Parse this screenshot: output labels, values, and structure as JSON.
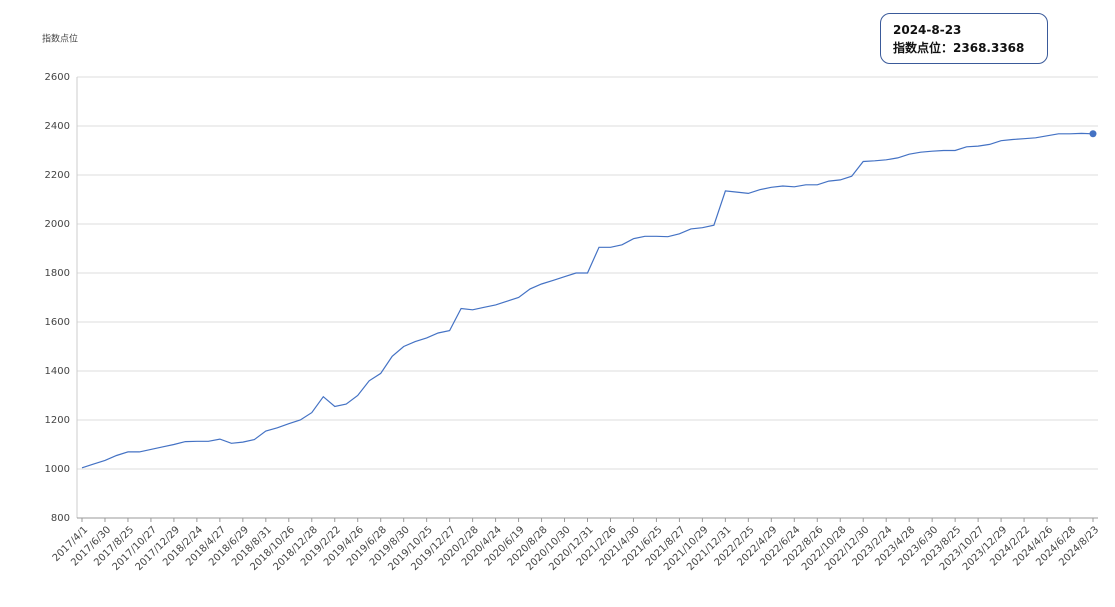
{
  "chart_data": {
    "type": "line",
    "y_label": "指数点位",
    "categories": [
      "2017/4/1",
      null,
      "2017/6/30",
      null,
      "2017/8/25",
      null,
      "2017/10/27",
      null,
      "2017/12/29",
      null,
      "2018/2/24",
      null,
      "2018/4/27",
      null,
      "2018/6/29",
      null,
      "2018/8/31",
      null,
      "2018/10/26",
      null,
      "2018/12/28",
      null,
      "2019/2/22",
      null,
      "2019/4/26",
      null,
      "2019/6/28",
      null,
      "2019/8/30",
      null,
      "2019/10/25",
      null,
      "2019/12/27",
      null,
      "2020/2/28",
      null,
      "2020/4/24",
      null,
      "2020/6/19",
      null,
      "2020/8/28",
      null,
      "2020/10/30",
      null,
      "2020/12/31",
      null,
      "2021/2/26",
      null,
      "2021/4/30",
      null,
      "2021/6/25",
      null,
      "2021/8/27",
      null,
      "2021/10/29",
      null,
      "2021/12/31",
      null,
      "2022/2/25",
      null,
      "2022/4/29",
      null,
      "2022/6/24",
      null,
      "2022/8/26",
      null,
      "2022/10/28",
      null,
      "2022/12/30",
      null,
      "2023/2/24",
      null,
      "2023/4/28",
      null,
      "2023/6/30",
      null,
      "2023/8/25",
      null,
      "2023/10/27",
      null,
      "2023/12/29",
      null,
      "2024/2/22",
      null,
      "2024/4/26",
      null,
      "2024/6/28",
      null,
      "2024/8/23"
    ],
    "series": [
      {
        "color": "#4472c4",
        "values": [
          1005,
          1020,
          1035,
          1055,
          1070,
          1070,
          1080,
          1090,
          1100,
          1112,
          1113,
          1113,
          1122,
          1105,
          1110,
          1120,
          1155,
          1168,
          1185,
          1200,
          1230,
          1295,
          1255,
          1265,
          1300,
          1360,
          1390,
          1460,
          1500,
          1520,
          1535,
          1555,
          1565,
          1655,
          1650,
          1660,
          1670,
          1685,
          1700,
          1735,
          1755,
          1770,
          1785,
          1800,
          1800,
          1905,
          1905,
          1915,
          1940,
          1950,
          1950,
          1948,
          1960,
          1980,
          1985,
          1995,
          2135,
          2130,
          2125,
          2140,
          2150,
          2155,
          2152,
          2160,
          2160,
          2175,
          2180,
          2195,
          2255,
          2258,
          2262,
          2270,
          2285,
          2293,
          2297,
          2300,
          2300,
          2315,
          2318,
          2325,
          2340,
          2345,
          2348,
          2352,
          2360,
          2368,
          2368,
          2370,
          2368.3368
        ]
      }
    ],
    "ylim": [
      800,
      2600
    ],
    "yticks": [
      800,
      1000,
      1200,
      1400,
      1600,
      1800,
      2000,
      2200,
      2400,
      2600
    ],
    "grid": true,
    "tooltip": {
      "title": "2024-8-23",
      "label": "指数点位："
    }
  }
}
